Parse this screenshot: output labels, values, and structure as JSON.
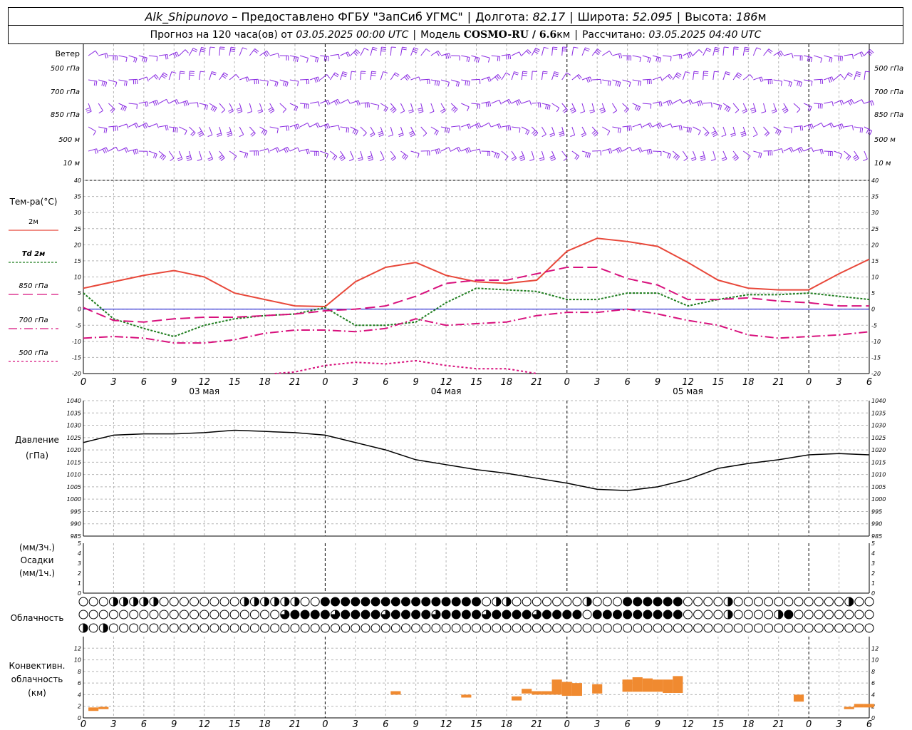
{
  "header": {
    "station": "Alk_Shipunovo",
    "provider": "– Предоставлено ФГБУ \"ЗапСиб УГМС\"",
    "lon_label": "Долгота:",
    "lon_value": "82.17",
    "lat_label": "Широта:",
    "lat_value": "52.095",
    "alt_label": "Высота:",
    "alt_value": "186",
    "alt_unit": "м",
    "forecast_label": "Прогноз на 120 часа(ов) от",
    "forecast_start": "03.05.2025 00:00 UTC",
    "model_label": "Модель",
    "model_name": "COSMO-RU / 6.6",
    "model_unit": "км",
    "computed_label": "Рассчитано:",
    "computed_value": "03.05.2025 04:40 UTC"
  },
  "colors": {
    "t2m": "#e8483a",
    "td2m": "#1e7d1e",
    "t850": "#d8117d",
    "t700": "#d8117d",
    "t500": "#d8117d",
    "wind": "#8a2be2",
    "pressure": "#000000",
    "convective": "#f08a30",
    "grid": "#b5b5b5",
    "zero_line": "#0000cc"
  },
  "chart_data": [
    {
      "type": "wind-barbs",
      "panel_label": "Ветер",
      "levels": [
        "500 гПа",
        "700 гПа",
        "850 гПа",
        "500 м",
        "10 м"
      ],
      "description_units": "barbs"
    },
    {
      "type": "line",
      "ylabel": "Тем-ра(°C)",
      "ylim": [
        -20,
        40
      ],
      "yticks": [
        -20,
        -15,
        -10,
        -5,
        0,
        5,
        10,
        15,
        20,
        25,
        30,
        35,
        40
      ],
      "x_ticks": [
        "0",
        "3",
        "6",
        "9",
        "12",
        "15",
        "18",
        "21",
        "0",
        "3",
        "6",
        "9",
        "12",
        "15",
        "18",
        "21",
        "0",
        "3",
        "6",
        "9",
        "12",
        "15",
        "18",
        "21",
        "0",
        "3",
        "6"
      ],
      "day_labels": [
        "03 мая",
        "04 мая",
        "05 мая"
      ],
      "series": [
        {
          "name": "2м",
          "key": "t2m",
          "dash": "solid",
          "x": [
            0,
            3,
            6,
            9,
            12,
            15,
            18,
            21,
            24,
            27,
            30,
            33,
            36,
            39,
            42,
            45,
            48,
            51,
            54,
            57,
            60,
            63,
            66,
            69,
            72,
            75,
            78
          ],
          "values": [
            6.5,
            8.5,
            10.5,
            12,
            10,
            5,
            3,
            1,
            0.8,
            8.5,
            13,
            14.5,
            10.5,
            8.5,
            8,
            9,
            18,
            22,
            21,
            19.5,
            14.5,
            9,
            6.5,
            6,
            6,
            11,
            15.5
          ]
        },
        {
          "name": "Td 2м",
          "key": "td2m",
          "dash": "dot",
          "x": [
            0,
            3,
            6,
            9,
            12,
            15,
            18,
            21,
            24,
            27,
            30,
            33,
            36,
            39,
            42,
            45,
            48,
            51,
            54,
            57,
            60,
            63,
            66,
            69,
            72,
            75,
            78
          ],
          "values": [
            5,
            -3,
            -6,
            -8.5,
            -5,
            -3,
            -2,
            -1.5,
            0.5,
            -5,
            -5,
            -4,
            2,
            6.5,
            6,
            5.5,
            3,
            3,
            5,
            5,
            1,
            3,
            4.5,
            4.5,
            5,
            4,
            3
          ]
        },
        {
          "name": "850 гПа",
          "key": "t850",
          "dash": "longdash",
          "x": [
            0,
            3,
            6,
            9,
            12,
            15,
            18,
            21,
            24,
            27,
            30,
            33,
            36,
            39,
            42,
            45,
            48,
            51,
            54,
            57,
            60,
            63,
            66,
            69,
            72,
            75,
            78
          ],
          "values": [
            0.5,
            -3.5,
            -4,
            -3,
            -2.5,
            -2.5,
            -2,
            -1.5,
            -0.5,
            0,
            1,
            4,
            8,
            9,
            9,
            11,
            13,
            13,
            9.5,
            7.5,
            3,
            3,
            3.5,
            2.5,
            2,
            1,
            1
          ]
        },
        {
          "name": "700 гПа",
          "key": "t700",
          "dash": "dashdot",
          "x": [
            0,
            3,
            6,
            9,
            12,
            15,
            18,
            21,
            24,
            27,
            30,
            33,
            36,
            39,
            42,
            45,
            48,
            51,
            54,
            57,
            60,
            63,
            66,
            69,
            72,
            75,
            78
          ],
          "values": [
            -9,
            -8.5,
            -9,
            -10.5,
            -10.5,
            -9.5,
            -7.5,
            -6.5,
            -6.5,
            -7,
            -6,
            -3,
            -5,
            -4.5,
            -4,
            -2,
            -1,
            -1,
            0,
            -1.5,
            -3.5,
            -5,
            -8,
            -9,
            -8.5,
            -8,
            -7
          ]
        },
        {
          "name": "500 гПа",
          "key": "t500",
          "dash": "short",
          "x": [
            19,
            21,
            24,
            27,
            30,
            33,
            36,
            39,
            42,
            45
          ],
          "values": [
            -20,
            -19.5,
            -17.5,
            -16.5,
            -17,
            -16,
            -17.5,
            -18.5,
            -18.5,
            -20
          ]
        }
      ]
    },
    {
      "type": "line",
      "ylabel": "Давление",
      "ylabel_unit": "(гПа)",
      "ylim": [
        985,
        1040
      ],
      "yticks": [
        985,
        990,
        995,
        1000,
        1005,
        1010,
        1015,
        1020,
        1025,
        1030,
        1035,
        1040
      ],
      "series": [
        {
          "name": "pressure",
          "x": [
            0,
            3,
            6,
            9,
            12,
            15,
            18,
            21,
            24,
            27,
            30,
            33,
            36,
            39,
            42,
            45,
            48,
            51,
            54,
            57,
            60,
            63,
            66,
            69,
            72,
            75,
            78
          ],
          "values": [
            1023,
            1026,
            1026.5,
            1026.5,
            1027,
            1028,
            1027.5,
            1027,
            1026,
            1023,
            1020,
            1016,
            1014,
            1012,
            1010.5,
            1008.5,
            1006.5,
            1004,
            1003.5,
            1005,
            1008,
            1012.5,
            1014.5,
            1016,
            1018,
            1018.5,
            1018
          ]
        }
      ]
    },
    {
      "type": "bar",
      "ylabel_top": "(мм/3ч.)",
      "ylabel_mid": "Осадки",
      "ylabel_bot": "(мм/1ч.)",
      "ylim": [
        0,
        5
      ],
      "yticks": [
        0,
        1,
        2,
        3,
        4,
        5
      ],
      "values": []
    },
    {
      "type": "symbols",
      "ylabel": "Облачность",
      "rows": 3
    },
    {
      "type": "bar",
      "ylabel": [
        "Конвективн.",
        "облачность",
        "(км)"
      ],
      "ylim": [
        0,
        14
      ],
      "yticks": [
        0,
        2,
        4,
        6,
        8,
        10,
        12
      ],
      "bars": [
        {
          "x": 1,
          "base": 1.2,
          "top": 1.8
        },
        {
          "x": 2,
          "base": 1.5,
          "top": 1.9
        },
        {
          "x": 31,
          "base": 4,
          "top": 4.6
        },
        {
          "x": 38,
          "base": 3.5,
          "top": 4
        },
        {
          "x": 43,
          "base": 3,
          "top": 3.7
        },
        {
          "x": 44,
          "base": 4.2,
          "top": 5
        },
        {
          "x": 45,
          "base": 4,
          "top": 4.6
        },
        {
          "x": 46,
          "base": 4,
          "top": 4.6
        },
        {
          "x": 47,
          "base": 4,
          "top": 6.6
        },
        {
          "x": 48,
          "base": 3.8,
          "top": 6.2
        },
        {
          "x": 49,
          "base": 3.8,
          "top": 6
        },
        {
          "x": 51,
          "base": 4.2,
          "top": 5.8
        },
        {
          "x": 54,
          "base": 4.5,
          "top": 6.6
        },
        {
          "x": 55,
          "base": 4.5,
          "top": 7
        },
        {
          "x": 56,
          "base": 4.5,
          "top": 6.8
        },
        {
          "x": 57,
          "base": 4.5,
          "top": 6.6
        },
        {
          "x": 58,
          "base": 4.3,
          "top": 6.6
        },
        {
          "x": 59,
          "base": 4.3,
          "top": 7.2
        },
        {
          "x": 71,
          "base": 2.8,
          "top": 4
        },
        {
          "x": 76,
          "base": 1.5,
          "top": 1.9
        },
        {
          "x": 77,
          "base": 1.8,
          "top": 2.4
        },
        {
          "x": 78,
          "base": 1.8,
          "top": 2.4
        }
      ]
    }
  ]
}
